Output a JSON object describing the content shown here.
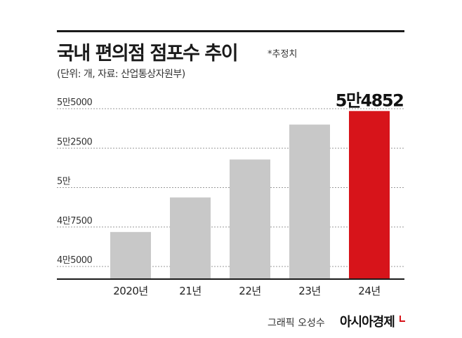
{
  "header": {
    "title": "국내 편의점 점포수 추이",
    "note": "*추정치",
    "unit": "(단위: 개, 자료: 산업통상자원부)"
  },
  "footer": {
    "credit": "그래픽 오성수",
    "brand": "아시아경제"
  },
  "colors": {
    "bar": "#c8c8c8",
    "highlight": "#d7141a",
    "grid": "#999999",
    "axis": "#1a1a1a"
  },
  "chart_data": {
    "type": "bar",
    "categories": [
      "2020년",
      "21년",
      "22년",
      "23년",
      "24년"
    ],
    "values": [
      47185,
      49375,
      51780,
      53995,
      54852
    ],
    "highlight_index": 4,
    "value_label": "5만4852",
    "yticks": [
      {
        "value": 45000,
        "label": "4만5000"
      },
      {
        "value": 47500,
        "label": "4만7500"
      },
      {
        "value": 50000,
        "label": "5만"
      },
      {
        "value": 52500,
        "label": "5만2500"
      },
      {
        "value": 55000,
        "label": "5만5000"
      }
    ],
    "ylim": [
      45000,
      55000
    ],
    "grid": true
  }
}
